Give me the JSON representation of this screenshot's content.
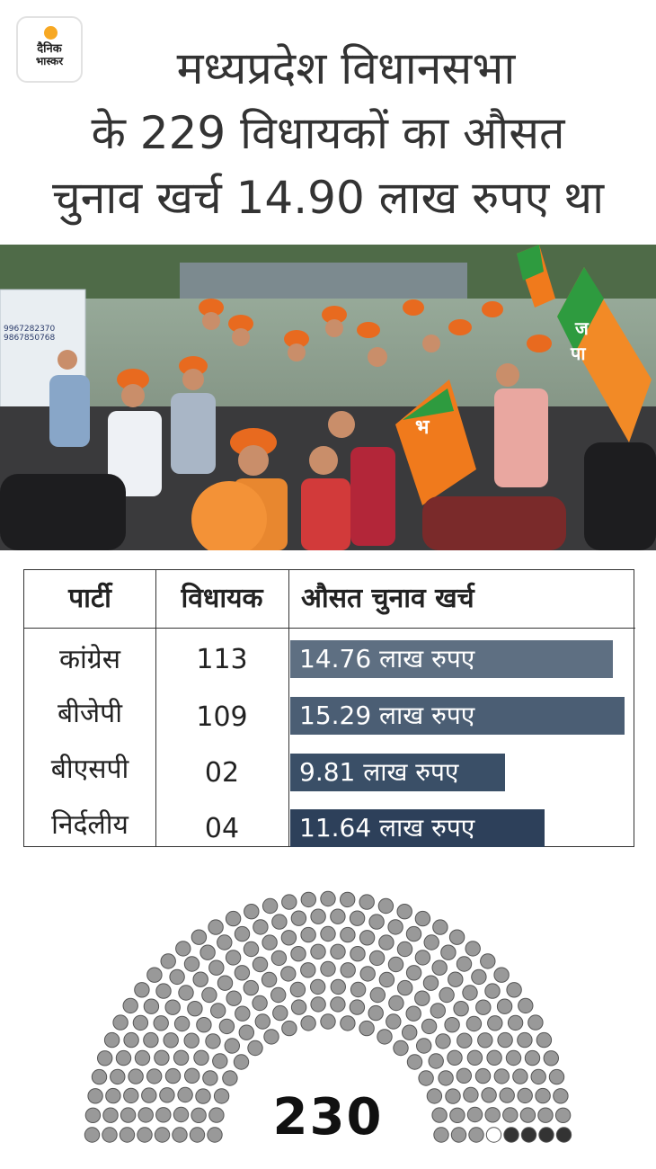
{
  "logo": {
    "line1": "दैनिक",
    "line2": "भास्कर",
    "accent": "#f7a823"
  },
  "title": {
    "line1": "मध्यप्रदेश विधानसभा",
    "line2": "के 229 विधायकों का औसत",
    "line3": "चुनाव खर्च 14.90 लाख रुपए था"
  },
  "photo": {
    "banner_text": "9967282370\n9867850768",
    "flag_letters": [
      "भ",
      "ज",
      "पा"
    ]
  },
  "chart_data": [
    {
      "type": "bar",
      "columns": [
        "पार्टी",
        "विधायक",
        "औसत चुनाव खर्च"
      ],
      "categories": [
        "कांग्रेस",
        "बीजेपी",
        "बीएसपी",
        "निर्दलीय"
      ],
      "mla_counts": [
        "113",
        "109",
        "02",
        "04"
      ],
      "values": [
        14.76,
        15.29,
        9.81,
        11.64
      ],
      "value_labels": [
        "14.76 लाख रुपए",
        "15.29 लाख रुपए",
        "9.81 लाख रुपए",
        "11.64 लाख रुपए"
      ],
      "bar_colors": [
        "#5e6f82",
        "#4b5e74",
        "#3a4f67",
        "#2d405a"
      ]
    },
    {
      "type": "parliament",
      "total_label": "230",
      "total_seats": 230,
      "seats": [
        {
          "label": "grey",
          "count": 225,
          "color": "#999999"
        },
        {
          "label": "dark",
          "count": 4,
          "color": "#333333"
        },
        {
          "label": "empty",
          "count": 1,
          "color": "#ffffff"
        }
      ]
    }
  ]
}
